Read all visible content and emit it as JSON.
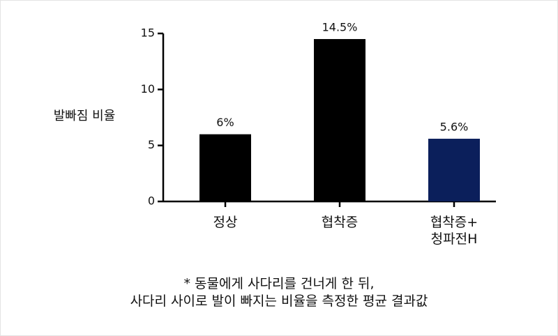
{
  "chart_data": {
    "type": "bar",
    "y_label": "발빠짐 비율",
    "categories": [
      "정상",
      "협착증",
      "협착증+\n청파전H"
    ],
    "values": [
      6,
      14.5,
      5.6
    ],
    "value_labels": [
      "6%",
      "14.5%",
      "5.6%"
    ],
    "colors": [
      "#000000",
      "#000000",
      "#0b1f5b"
    ],
    "ylim": [
      0,
      15
    ],
    "yticks": [
      0,
      5,
      10,
      15
    ],
    "note": "* 동물에게 사다리를 건너게 한 뒤,\n사다리 사이로 발이 빠지는 비율을 측정한 평균 결과값"
  }
}
